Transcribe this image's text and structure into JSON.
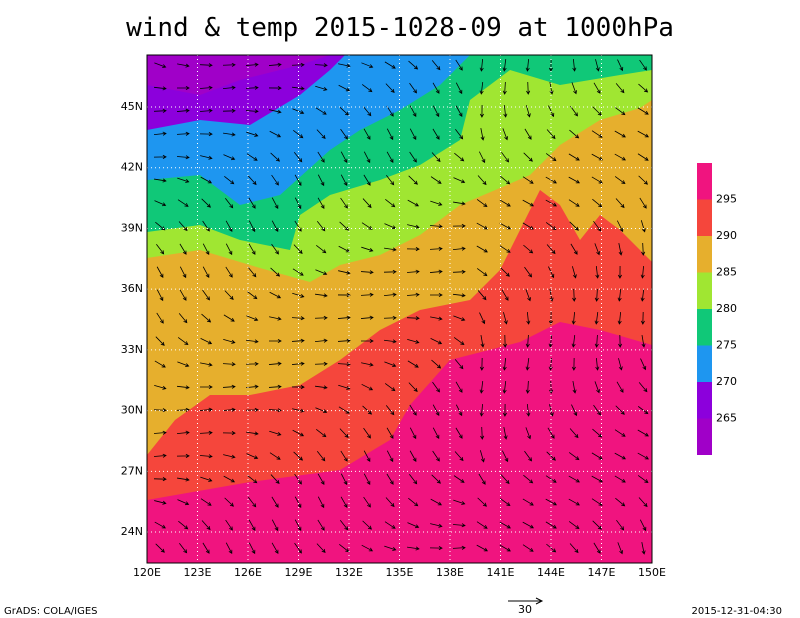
{
  "title": "wind & temp 2015-1028-09 at 1000hPa",
  "map": {
    "xlim": [
      120,
      150
    ],
    "ylim": [
      22.47,
      47.57
    ],
    "lon_ticks": [
      {
        "value": 120,
        "label": "120E"
      },
      {
        "value": 123,
        "label": "123E"
      },
      {
        "value": 126,
        "label": "126E"
      },
      {
        "value": 129,
        "label": "129E"
      },
      {
        "value": 132,
        "label": "132E"
      },
      {
        "value": 135,
        "label": "135E"
      },
      {
        "value": 138,
        "label": "138E"
      },
      {
        "value": 141,
        "label": "141E"
      },
      {
        "value": 144,
        "label": "144E"
      },
      {
        "value": 147,
        "label": "147E"
      },
      {
        "value": 150,
        "label": "150E"
      }
    ],
    "lat_ticks": [
      {
        "value": 24,
        "label": "24N"
      },
      {
        "value": 27,
        "label": "27N"
      },
      {
        "value": 30,
        "label": "30N"
      },
      {
        "value": 33,
        "label": "33N"
      },
      {
        "value": 36,
        "label": "36N"
      },
      {
        "value": 39,
        "label": "39N"
      },
      {
        "value": 42,
        "label": "42N"
      },
      {
        "value": 45,
        "label": "45N"
      }
    ]
  },
  "colorbar": {
    "levels": [
      265,
      270,
      275,
      280,
      285,
      290,
      295
    ],
    "colors": [
      "#a000c8",
      "#8c00dc",
      "#1e96f0",
      "#10c878",
      "#a0e632",
      "#e6af2d",
      "#f5463c",
      "#f0147f"
    ]
  },
  "vector_scale": "30",
  "footer_left": "GrADS: COLA/IGES",
  "footer_right": "2015-12-31-04:30"
}
